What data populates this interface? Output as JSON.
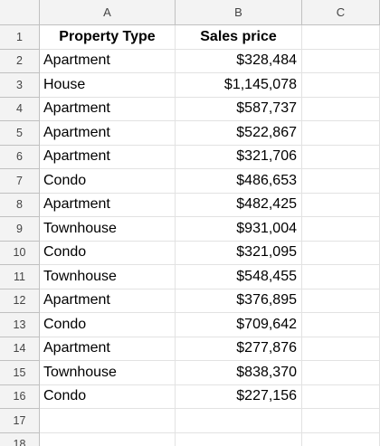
{
  "columns": [
    "A",
    "B",
    "C"
  ],
  "header": {
    "col_a": "Property Type",
    "col_b": "Sales price"
  },
  "rows": [
    {
      "num": "1"
    },
    {
      "num": "2",
      "type": "Apartment",
      "price": "$328,484"
    },
    {
      "num": "3",
      "type": "House",
      "price": "$1,145,078"
    },
    {
      "num": "4",
      "type": "Apartment",
      "price": "$587,737"
    },
    {
      "num": "5",
      "type": "Apartment",
      "price": "$522,867"
    },
    {
      "num": "6",
      "type": "Apartment",
      "price": "$321,706"
    },
    {
      "num": "7",
      "type": "Condo",
      "price": "$486,653"
    },
    {
      "num": "8",
      "type": "Apartment",
      "price": "$482,425"
    },
    {
      "num": "9",
      "type": "Townhouse",
      "price": "$931,004"
    },
    {
      "num": "10",
      "type": "Condo",
      "price": "$321,095"
    },
    {
      "num": "11",
      "type": "Townhouse",
      "price": "$548,455"
    },
    {
      "num": "12",
      "type": "Apartment",
      "price": "$376,895"
    },
    {
      "num": "13",
      "type": "Condo",
      "price": "$709,642"
    },
    {
      "num": "14",
      "type": "Apartment",
      "price": "$277,876"
    },
    {
      "num": "15",
      "type": "Townhouse",
      "price": "$838,370"
    },
    {
      "num": "16",
      "type": "Condo",
      "price": "$227,156"
    },
    {
      "num": "17"
    },
    {
      "num": "18"
    }
  ],
  "colors": {
    "header_bg": "#f3f3f3",
    "gridline": "#e2e2e2",
    "header_border": "#c0c0c0"
  }
}
